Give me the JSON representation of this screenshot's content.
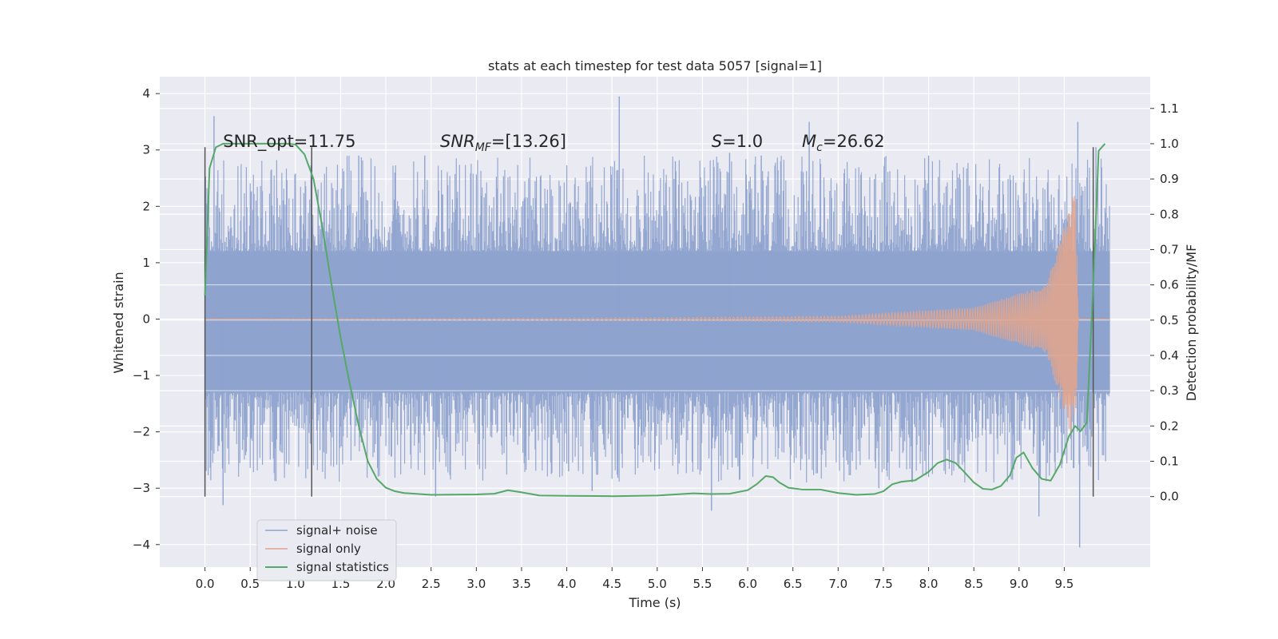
{
  "chart_data": {
    "type": "line",
    "title": "stats at each timestep for test data 5057 [signal=1]",
    "xlabel": "Time (s)",
    "ylabel_left": "Whitened strain",
    "ylabel_right": "Detection probability/MF",
    "xlim": [
      -0.5,
      10.45
    ],
    "ylim_left": [
      -4.4,
      4.3
    ],
    "ylim_right": [
      -0.2,
      1.19
    ],
    "x_ticks": [
      "0.0",
      "0.5",
      "1.0",
      "1.5",
      "2.0",
      "2.5",
      "3.0",
      "3.5",
      "4.0",
      "4.5",
      "5.0",
      "5.5",
      "6.0",
      "6.5",
      "7.0",
      "7.5",
      "8.0",
      "8.5",
      "9.0",
      "9.5"
    ],
    "y_ticks_left": [
      "4",
      "3",
      "2",
      "1",
      "0",
      "−1",
      "−2",
      "−3",
      "−4"
    ],
    "y_ticks_right": [
      "1.1",
      "1.0",
      "0.9",
      "0.8",
      "0.7",
      "0.6",
      "0.5",
      "0.4",
      "0.3",
      "0.2",
      "0.1",
      "0.0"
    ],
    "grid": true,
    "legend_position": "lower-left",
    "legend": [
      "signal+ noise",
      "signal only",
      "signal statistics"
    ],
    "annotations": [
      {
        "text": "SNR_opt=11.75",
        "x": 0.2,
        "y": 3.05
      },
      {
        "text": "=[13.26]",
        "prefix_main": "SNR",
        "prefix_sub": "MF",
        "x": 2.6,
        "y": 3.05
      },
      {
        "text": "=1.0",
        "prefix_main": "S",
        "x": 5.6,
        "y": 3.05
      },
      {
        "text": "=26.62",
        "prefix_main": "M",
        "prefix_sub": "c",
        "x": 6.6,
        "y": 3.05
      }
    ],
    "vertical_lines_x": [
      0.0,
      1.18,
      9.82
    ],
    "vertical_lines_yrange": [
      -3.15,
      3.05
    ],
    "noise_series": {
      "name": "signal+ noise",
      "color": "#8fa3cf",
      "x_range": [
        0.0,
        10.0
      ],
      "band": [
        -1.3,
        1.2
      ],
      "spikes": [
        {
          "x": 0.1,
          "y": 3.6
        },
        {
          "x": 0.2,
          "y": -3.3
        },
        {
          "x": 1.25,
          "y": 2.3
        },
        {
          "x": 1.7,
          "y": 2.9
        },
        {
          "x": 2.1,
          "y": 2.6
        },
        {
          "x": 2.43,
          "y": 2.9
        },
        {
          "x": 2.55,
          "y": -3.15
        },
        {
          "x": 4.02,
          "y": -2.7
        },
        {
          "x": 4.28,
          "y": -3.05
        },
        {
          "x": 4.58,
          "y": 3.95
        },
        {
          "x": 5.2,
          "y": 2.8
        },
        {
          "x": 5.6,
          "y": -3.4
        },
        {
          "x": 5.8,
          "y": 2.95
        },
        {
          "x": 6.15,
          "y": 2.9
        },
        {
          "x": 6.68,
          "y": 3.5
        },
        {
          "x": 7.45,
          "y": -3.0
        },
        {
          "x": 8.0,
          "y": 2.9
        },
        {
          "x": 9.22,
          "y": -3.5
        },
        {
          "x": 9.65,
          "y": 3.5
        },
        {
          "x": 9.67,
          "y": -4.05
        },
        {
          "x": 9.85,
          "y": 3.05
        }
      ]
    },
    "signal_series": {
      "name": "signal only",
      "color": "#e0a58e",
      "description_points": [
        [
          0.0,
          0.0
        ],
        [
          5.0,
          0.02
        ],
        [
          7.0,
          0.05
        ],
        [
          8.5,
          0.2
        ],
        [
          9.3,
          0.6
        ],
        [
          9.62,
          2.3
        ],
        [
          9.66,
          0.0
        ],
        [
          10.0,
          0.0
        ]
      ]
    },
    "stat_series": {
      "name": "signal statistics",
      "color": "#55a868",
      "x": [
        0.0,
        0.05,
        0.12,
        0.2,
        0.3,
        0.5,
        0.7,
        0.9,
        1.0,
        1.1,
        1.2,
        1.3,
        1.4,
        1.5,
        1.6,
        1.7,
        1.8,
        1.9,
        2.0,
        2.1,
        2.2,
        2.5,
        3.0,
        3.2,
        3.35,
        3.5,
        3.7,
        4.0,
        4.5,
        5.0,
        5.4,
        5.6,
        5.8,
        6.0,
        6.1,
        6.2,
        6.28,
        6.35,
        6.45,
        6.6,
        6.8,
        7.0,
        7.2,
        7.4,
        7.5,
        7.6,
        7.7,
        7.85,
        8.0,
        8.1,
        8.2,
        8.3,
        8.4,
        8.5,
        8.6,
        8.7,
        8.8,
        8.9,
        8.97,
        9.05,
        9.15,
        9.25,
        9.35,
        9.45,
        9.55,
        9.62,
        9.68,
        9.75,
        9.82,
        9.88,
        9.95
      ],
      "y": [
        0.57,
        0.93,
        0.99,
        1.0,
        1.0,
        1.0,
        1.0,
        1.0,
        0.998,
        0.97,
        0.9,
        0.76,
        0.6,
        0.45,
        0.32,
        0.2,
        0.1,
        0.05,
        0.025,
        0.015,
        0.01,
        0.005,
        0.006,
        0.008,
        0.018,
        0.012,
        0.003,
        0.002,
        0.001,
        0.003,
        0.009,
        0.007,
        0.008,
        0.018,
        0.035,
        0.058,
        0.055,
        0.04,
        0.025,
        0.02,
        0.02,
        0.01,
        0.005,
        0.007,
        0.015,
        0.035,
        0.042,
        0.046,
        0.07,
        0.095,
        0.105,
        0.095,
        0.068,
        0.04,
        0.022,
        0.02,
        0.03,
        0.06,
        0.11,
        0.125,
        0.08,
        0.05,
        0.045,
        0.09,
        0.17,
        0.2,
        0.185,
        0.21,
        0.6,
        0.98,
        1.0
      ]
    }
  }
}
